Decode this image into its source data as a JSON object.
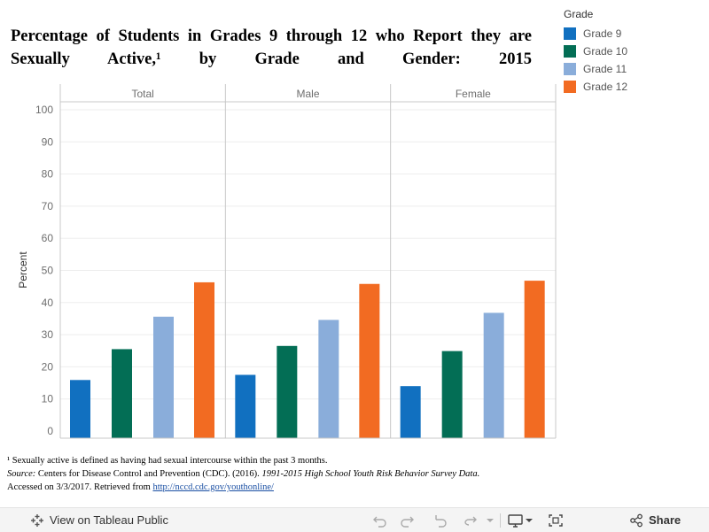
{
  "title": "Percentage of Students in Grades 9 through 12 who Report they are Sexually Active,¹ by Grade and Gender: 2015",
  "colors": {
    "grade9": "#1170c0",
    "grade10": "#036e55",
    "grade11": "#8aadda",
    "grade12": "#f26b22",
    "grid": "#eeeeee",
    "axis": "#c8c8c8",
    "tick_text": "#6e6e6e"
  },
  "legend": {
    "title": "Grade",
    "items": [
      {
        "label": "Grade 9",
        "color": "#1170c0"
      },
      {
        "label": "Grade 10",
        "color": "#036e55"
      },
      {
        "label": "Grade 11",
        "color": "#8aadda"
      },
      {
        "label": "Grade 12",
        "color": "#f26b22"
      }
    ]
  },
  "chart_data": {
    "type": "bar",
    "title": "Percentage of Students in Grades 9 through 12 who Report they are Sexually Active,¹ by Grade and Gender: 2015",
    "panels": [
      "Total",
      "Male",
      "Female"
    ],
    "categories": [
      "Grade 9",
      "Grade 10",
      "Grade 11",
      "Grade 12"
    ],
    "series": [
      {
        "name": "Total",
        "values": [
          15.9,
          25.5,
          35.6,
          46.3
        ]
      },
      {
        "name": "Male",
        "values": [
          17.5,
          26.5,
          34.6,
          45.8
        ]
      },
      {
        "name": "Female",
        "values": [
          14.0,
          24.9,
          36.8,
          46.8
        ]
      }
    ],
    "ylabel": "Percent",
    "xlabel": "",
    "ylim": [
      0,
      100
    ],
    "yticks": [
      0,
      10,
      20,
      30,
      40,
      50,
      60,
      70,
      80,
      90,
      100
    ],
    "grid": true,
    "legend_position": "top-right"
  },
  "notes": {
    "footnote": "¹ Sexually active is defined as having had sexual intercourse within the past 3 months.",
    "source_label": "Source:",
    "source_text": " Centers for Disease Control and Prevention (CDC). (2016). ",
    "source_title": "1991-2015 High School Youth Risk Behavior Survey Data.",
    "accessed_text": "Accessed on 3/3/2017. Retrieved from ",
    "link_text": "http://nccd.cdc.gov/youthonline/"
  },
  "toolbar": {
    "view_label": "View on Tableau Public",
    "share_label": "Share"
  }
}
